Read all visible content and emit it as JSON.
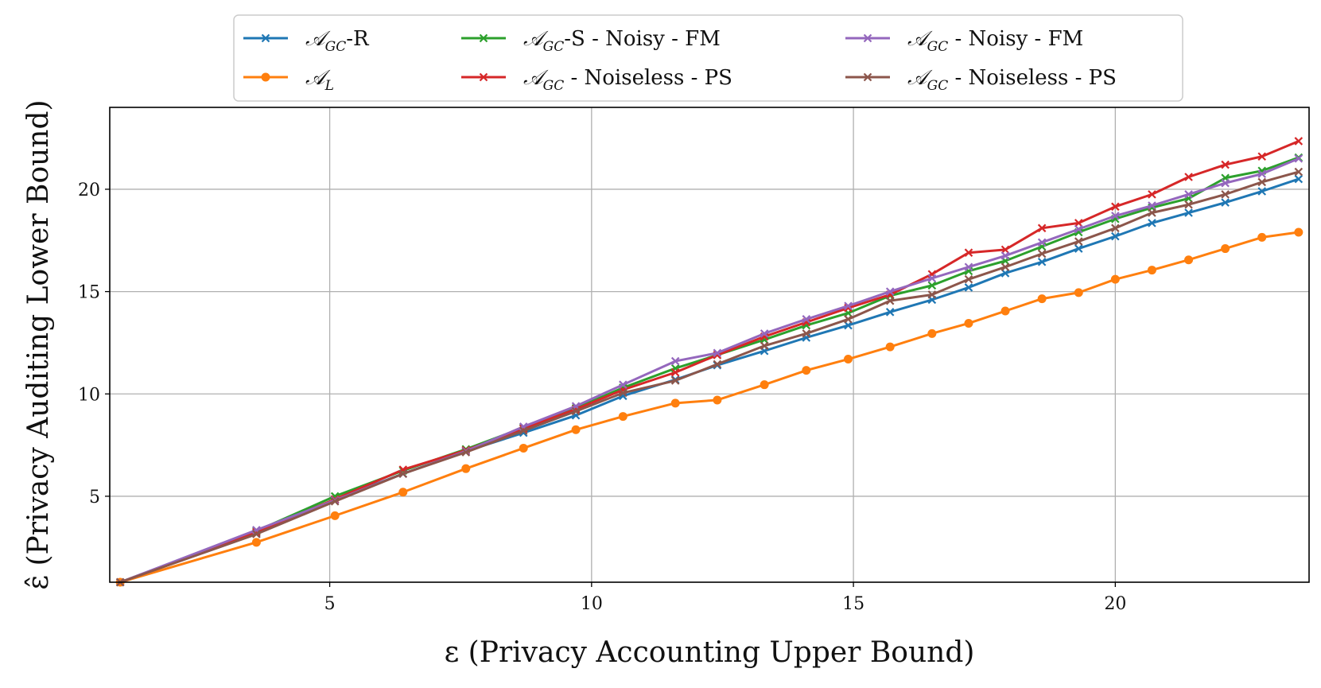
{
  "chart_data": {
    "type": "line",
    "xlabel": "ε (Privacy Accounting Upper Bound)",
    "ylabel": "ε̂ (Privacy Auditing Lower Bound)",
    "xlim": [
      0.8,
      23.7
    ],
    "ylim": [
      0.8,
      24
    ],
    "xticks": [
      5,
      10,
      15,
      20
    ],
    "yticks": [
      5,
      10,
      15,
      20
    ],
    "grid": true,
    "legend_position": "top-center",
    "series": [
      {
        "name": "𝒜_GC-R",
        "legend_main": "𝒜",
        "legend_sub": "GC",
        "legend_rest": "-R",
        "color": "#1f77b4",
        "marker": "x",
        "x": [
          1,
          3.6,
          5.1,
          6.4,
          7.6,
          8.7,
          9.7,
          10.6,
          11.6,
          12.4,
          13.3,
          14.1,
          14.9,
          15.7,
          16.5,
          17.2,
          17.9,
          18.6,
          19.3,
          20,
          20.7,
          21.4,
          22.1,
          22.8,
          23.5
        ],
        "y": [
          0.6,
          3.2,
          4.85,
          6.1,
          7.2,
          8.1,
          8.95,
          9.9,
          10.7,
          11.4,
          12.1,
          12.75,
          13.35,
          14.0,
          14.6,
          15.2,
          15.9,
          16.45,
          17.1,
          17.7,
          18.35,
          18.85,
          19.35,
          19.9,
          20.5
        ]
      },
      {
        "name": "𝒜_L",
        "legend_main": "𝒜",
        "legend_sub": "L",
        "legend_rest": "",
        "color": "#ff7f0e",
        "marker": "o",
        "x": [
          1,
          3.6,
          5.1,
          6.4,
          7.6,
          8.7,
          9.7,
          10.6,
          11.6,
          12.4,
          13.3,
          14.1,
          14.9,
          15.7,
          16.5,
          17.2,
          17.9,
          18.6,
          19.3,
          20,
          20.7,
          21.4,
          22.1,
          22.8,
          23.5
        ],
        "y": [
          0.6,
          2.75,
          4.05,
          5.2,
          6.35,
          7.35,
          8.25,
          8.9,
          9.55,
          9.7,
          10.45,
          11.15,
          11.7,
          12.3,
          12.95,
          13.45,
          14.05,
          14.65,
          14.95,
          15.6,
          16.05,
          16.55,
          17.1,
          17.65,
          17.9
        ]
      },
      {
        "name": "𝒜_GC-S - Noisy - FM",
        "legend_main": "𝒜",
        "legend_sub": "GC",
        "legend_rest": "-S - Noisy - FM",
        "color": "#2ca02c",
        "marker": "x",
        "x": [
          1,
          3.6,
          5.1,
          6.4,
          7.6,
          8.7,
          9.7,
          10.6,
          11.6,
          12.4,
          13.3,
          14.1,
          14.9,
          15.7,
          16.5,
          17.2,
          17.9,
          18.6,
          19.3,
          20,
          20.7,
          21.4,
          22.1,
          22.8,
          23.5
        ],
        "y": [
          0.65,
          3.3,
          5.0,
          6.25,
          7.3,
          8.35,
          9.3,
          10.3,
          11.25,
          11.9,
          12.65,
          13.35,
          13.95,
          14.8,
          15.3,
          16.0,
          16.5,
          17.2,
          17.9,
          18.55,
          19.1,
          19.55,
          20.55,
          20.9,
          21.55
        ]
      },
      {
        "name": "𝒜_GC - Noiseless - PS",
        "legend_main": "𝒜",
        "legend_sub": "GC",
        "legend_rest": " - Noiseless - PS",
        "color": "#d62728",
        "marker": "x",
        "x": [
          1,
          3.6,
          5.1,
          6.4,
          7.6,
          8.7,
          9.7,
          10.6,
          11.6,
          12.4,
          13.3,
          14.1,
          14.9,
          15.7,
          16.5,
          17.2,
          17.9,
          18.6,
          19.3,
          20,
          20.7,
          21.4,
          22.1,
          22.8,
          23.5
        ],
        "y": [
          0.6,
          3.25,
          4.85,
          6.3,
          7.25,
          8.3,
          9.25,
          10.2,
          11.05,
          11.9,
          12.8,
          13.5,
          14.2,
          14.85,
          15.85,
          16.9,
          17.05,
          18.1,
          18.35,
          19.15,
          19.75,
          20.6,
          21.2,
          21.6,
          22.35
        ]
      },
      {
        "name": "𝒜_GC - Noisy - FM",
        "legend_main": "𝒜",
        "legend_sub": "GC",
        "legend_rest": " - Noisy - FM",
        "color": "#9467bd",
        "marker": "x",
        "x": [
          1,
          3.6,
          5.1,
          6.4,
          7.6,
          8.7,
          9.7,
          10.6,
          11.6,
          12.4,
          13.3,
          14.1,
          14.9,
          15.7,
          16.5,
          17.2,
          17.9,
          18.6,
          19.3,
          20,
          20.7,
          21.4,
          22.1,
          22.8,
          23.5
        ],
        "y": [
          0.75,
          3.35,
          4.8,
          6.1,
          7.2,
          8.4,
          9.4,
          10.45,
          11.6,
          12.0,
          12.95,
          13.65,
          14.3,
          15.0,
          15.65,
          16.2,
          16.75,
          17.4,
          18.05,
          18.7,
          19.2,
          19.75,
          20.3,
          20.75,
          21.5
        ]
      },
      {
        "name": "𝒜_GC - Noiseless - PS",
        "legend_main": "𝒜",
        "legend_sub": "GC",
        "legend_rest": " - Noiseless - PS",
        "color": "#8c564b",
        "marker": "x",
        "x": [
          1,
          3.6,
          5.1,
          6.4,
          7.6,
          8.7,
          9.7,
          10.6,
          11.6,
          12.4,
          13.3,
          14.1,
          14.9,
          15.7,
          16.5,
          17.2,
          17.9,
          18.6,
          19.3,
          20,
          20.7,
          21.4,
          22.1,
          22.8,
          23.5
        ],
        "y": [
          0.6,
          3.15,
          4.75,
          6.1,
          7.15,
          8.2,
          9.15,
          10.05,
          10.65,
          11.45,
          12.35,
          12.95,
          13.65,
          14.55,
          14.85,
          15.6,
          16.2,
          16.85,
          17.45,
          18.1,
          18.85,
          19.25,
          19.75,
          20.35,
          20.85
        ]
      }
    ]
  }
}
